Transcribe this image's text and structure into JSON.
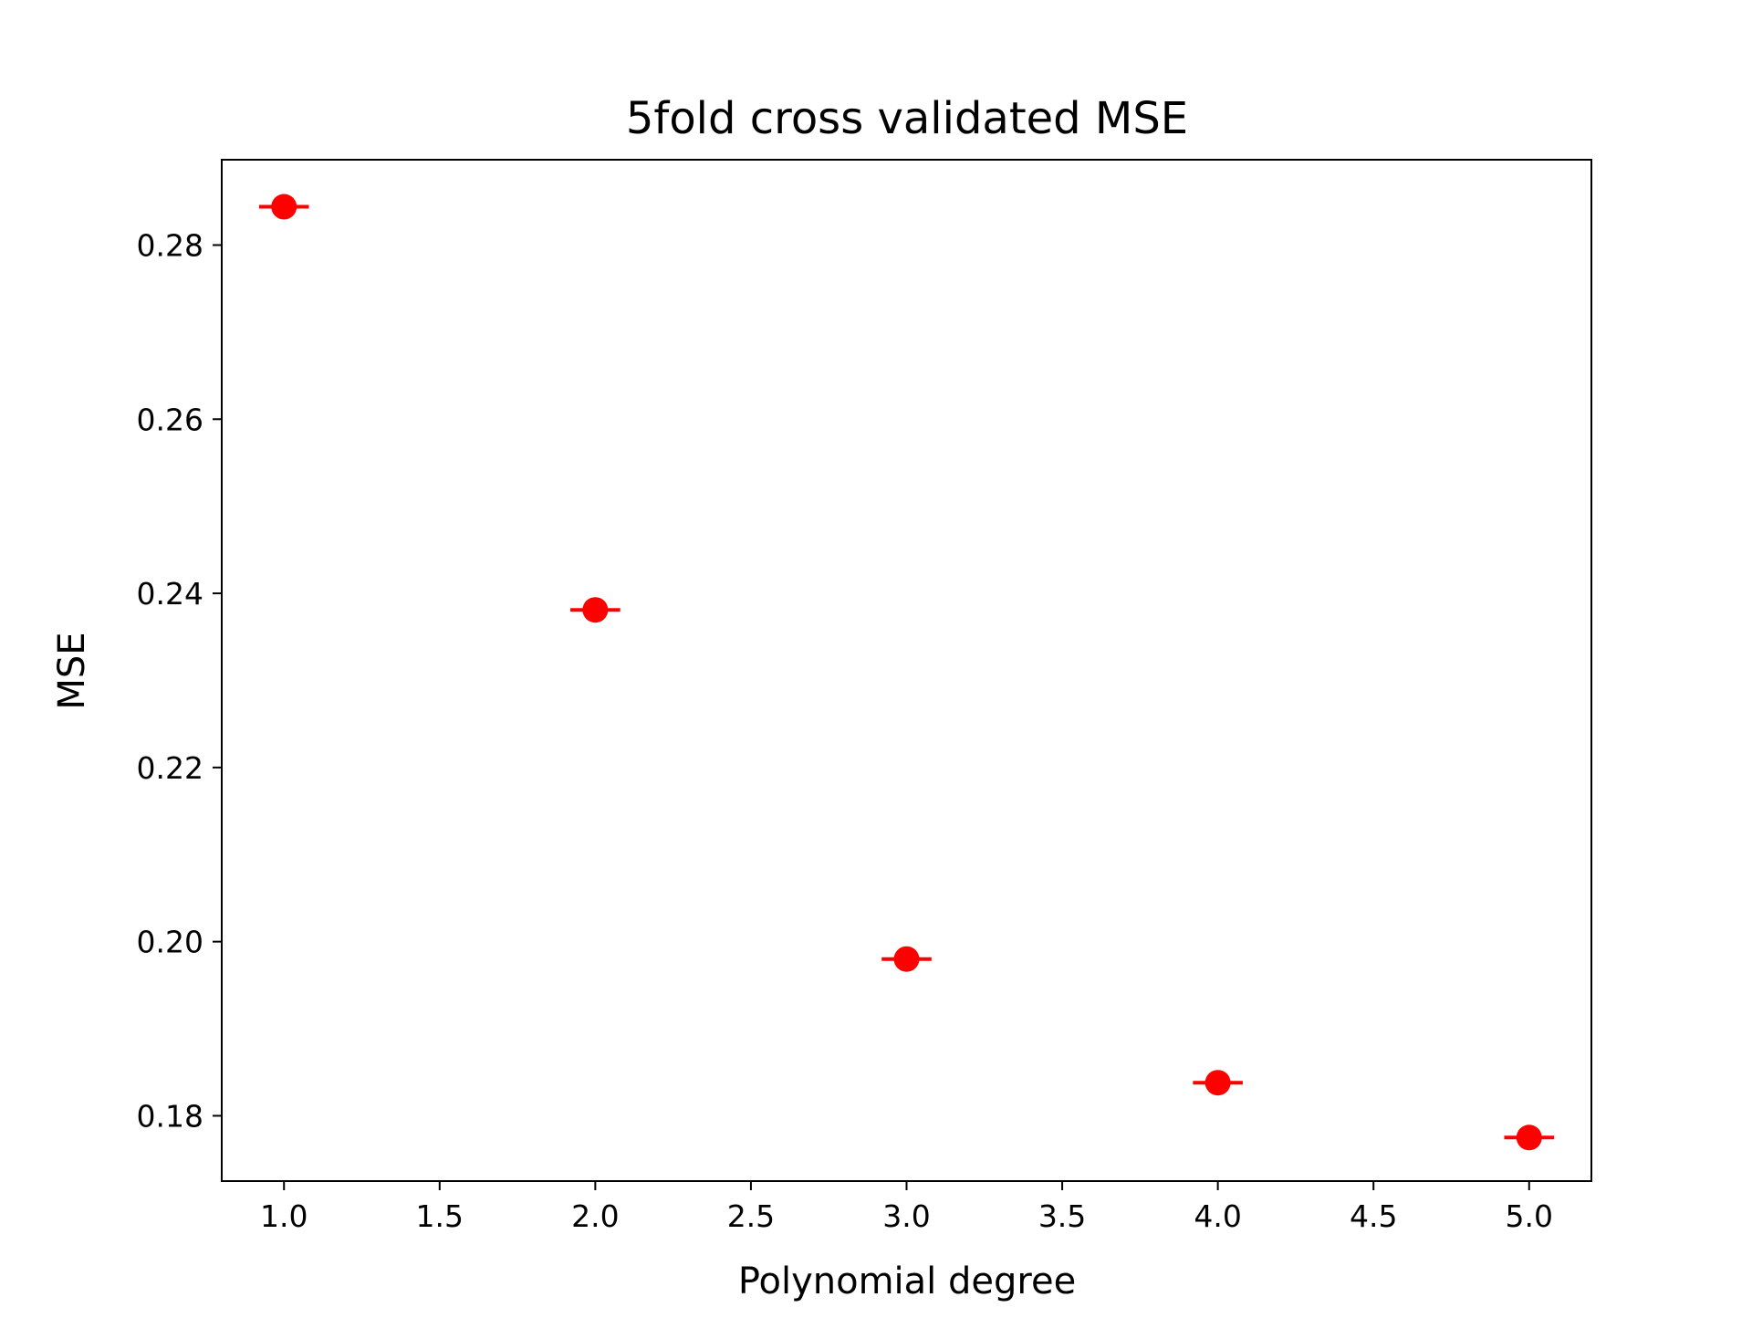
{
  "chart_data": {
    "type": "scatter",
    "title": "5fold cross validated MSE",
    "xlabel": "Polynomial degree",
    "ylabel": "MSE",
    "xlim": [
      0.8,
      5.2
    ],
    "ylim": [
      0.1725,
      0.2898
    ],
    "xticks": [
      1.0,
      1.5,
      2.0,
      2.5,
      3.0,
      3.5,
      4.0,
      4.5,
      5.0
    ],
    "xtick_labels": [
      "1.0",
      "1.5",
      "2.0",
      "2.5",
      "3.0",
      "3.5",
      "4.0",
      "4.5",
      "5.0"
    ],
    "yticks": [
      0.18,
      0.2,
      0.22,
      0.24,
      0.26,
      0.28
    ],
    "ytick_labels": [
      "0.18",
      "0.20",
      "0.22",
      "0.24",
      "0.26",
      "0.28"
    ],
    "grid": false,
    "legend": "none",
    "series": [
      {
        "color": "#ff0000",
        "marker": "circle",
        "error_bars": "horizontal",
        "x": [
          1,
          2,
          3,
          4,
          5
        ],
        "y": [
          0.2844,
          0.2381,
          0.198,
          0.1838,
          0.1775
        ],
        "xerr": [
          0.08,
          0.08,
          0.08,
          0.08,
          0.08
        ]
      }
    ]
  }
}
